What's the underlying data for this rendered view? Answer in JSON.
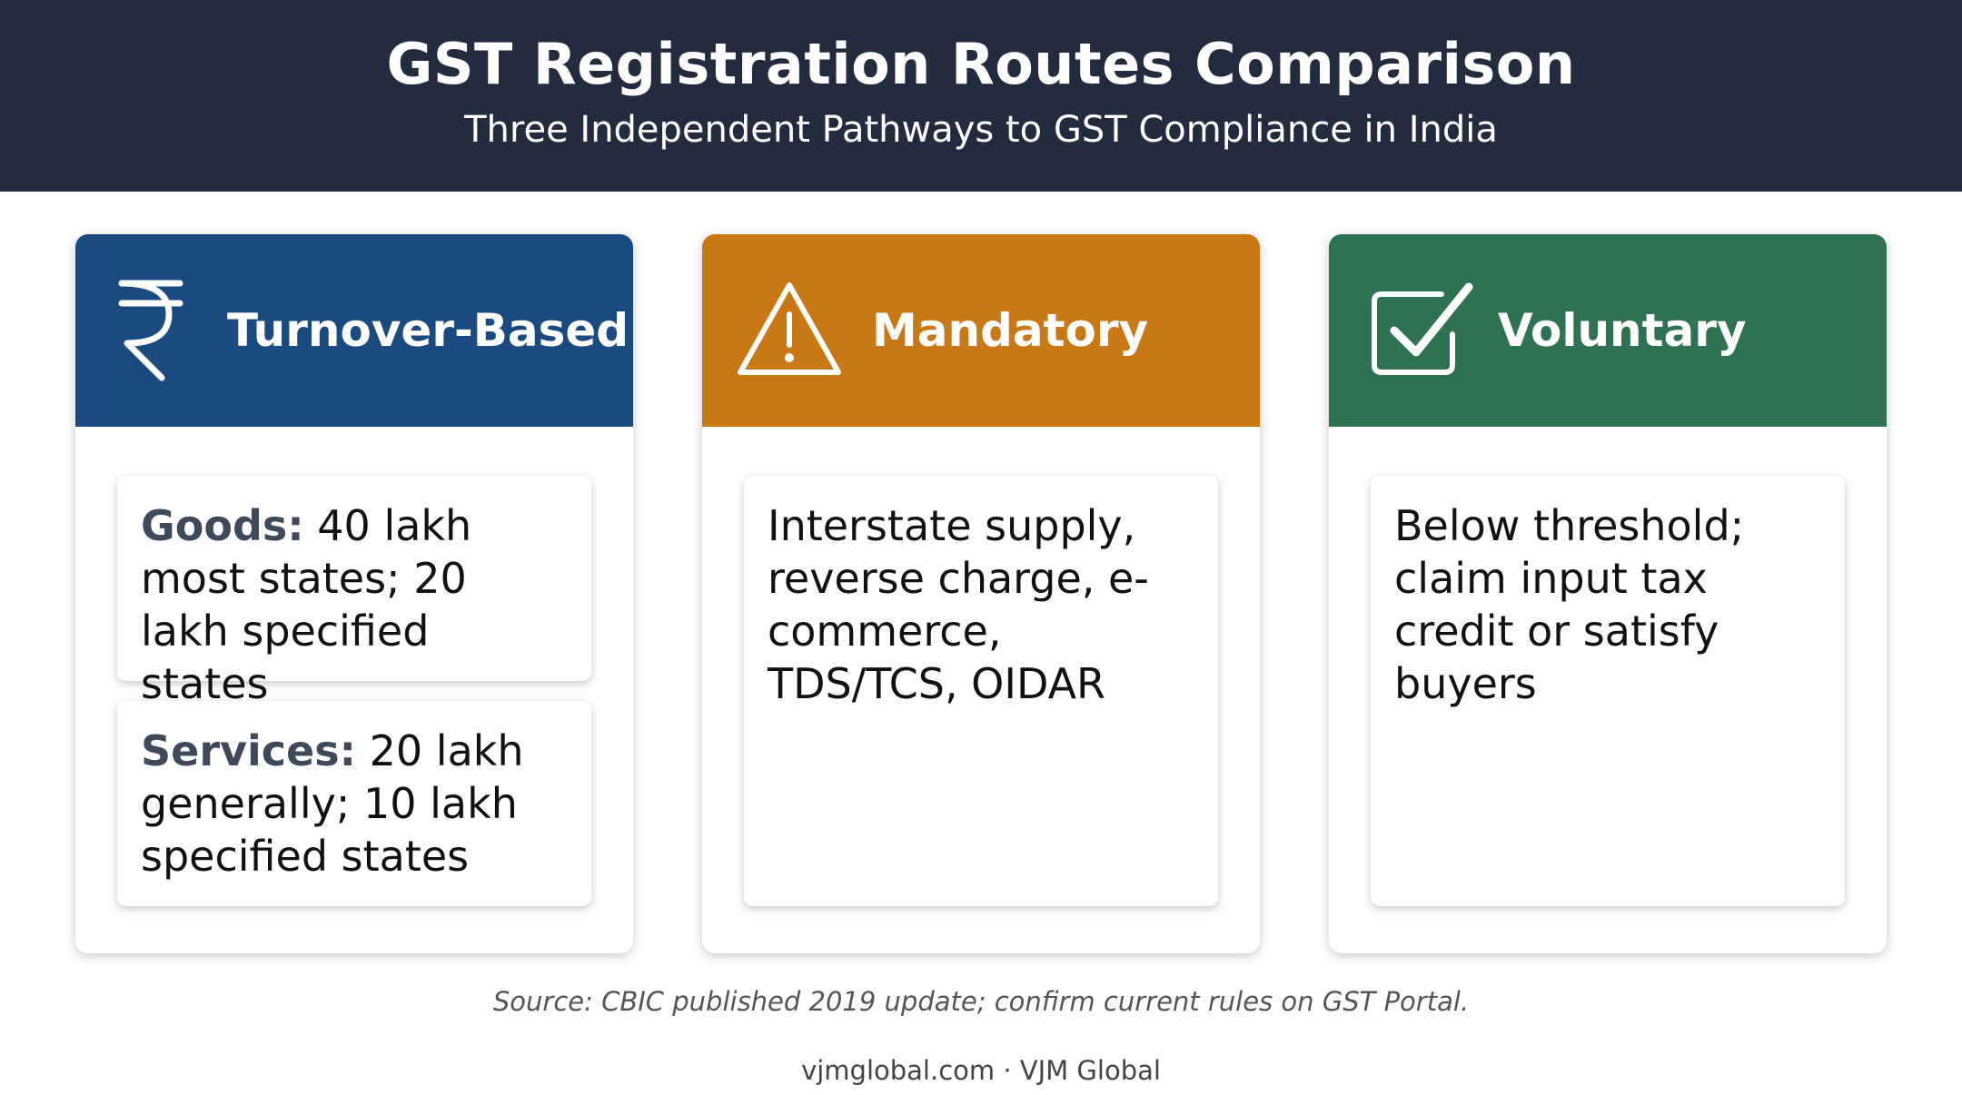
{
  "header": {
    "title": "GST Registration Routes Comparison",
    "subtitle": "Three Independent Pathways to GST Compliance in India"
  },
  "cards": [
    {
      "title": "Turnover-Based",
      "icon": "rupee-icon",
      "color": "#1b4a80",
      "items": [
        {
          "label": "Goods:",
          "text": " 40 lakh most states; 20 lakh specified states"
        },
        {
          "label": "Services:",
          "text": " 20 lakh generally; 10 lakh specified states"
        }
      ]
    },
    {
      "title": "Mandatory",
      "icon": "warning-icon",
      "color": "#c97816",
      "items": [
        {
          "text": "Interstate supply, reverse charge, e-commerce, TDS/TCS, OIDAR"
        }
      ]
    },
    {
      "title": "Voluntary",
      "icon": "checkbox-icon",
      "color": "#2e7252",
      "items": [
        {
          "text": "Below threshold; claim input tax credit or satisfy buyers"
        }
      ]
    }
  ],
  "source": "Source: CBIC published 2019 update; confirm current rules on GST Portal.",
  "footer": "vjmglobal.com · VJM Global"
}
